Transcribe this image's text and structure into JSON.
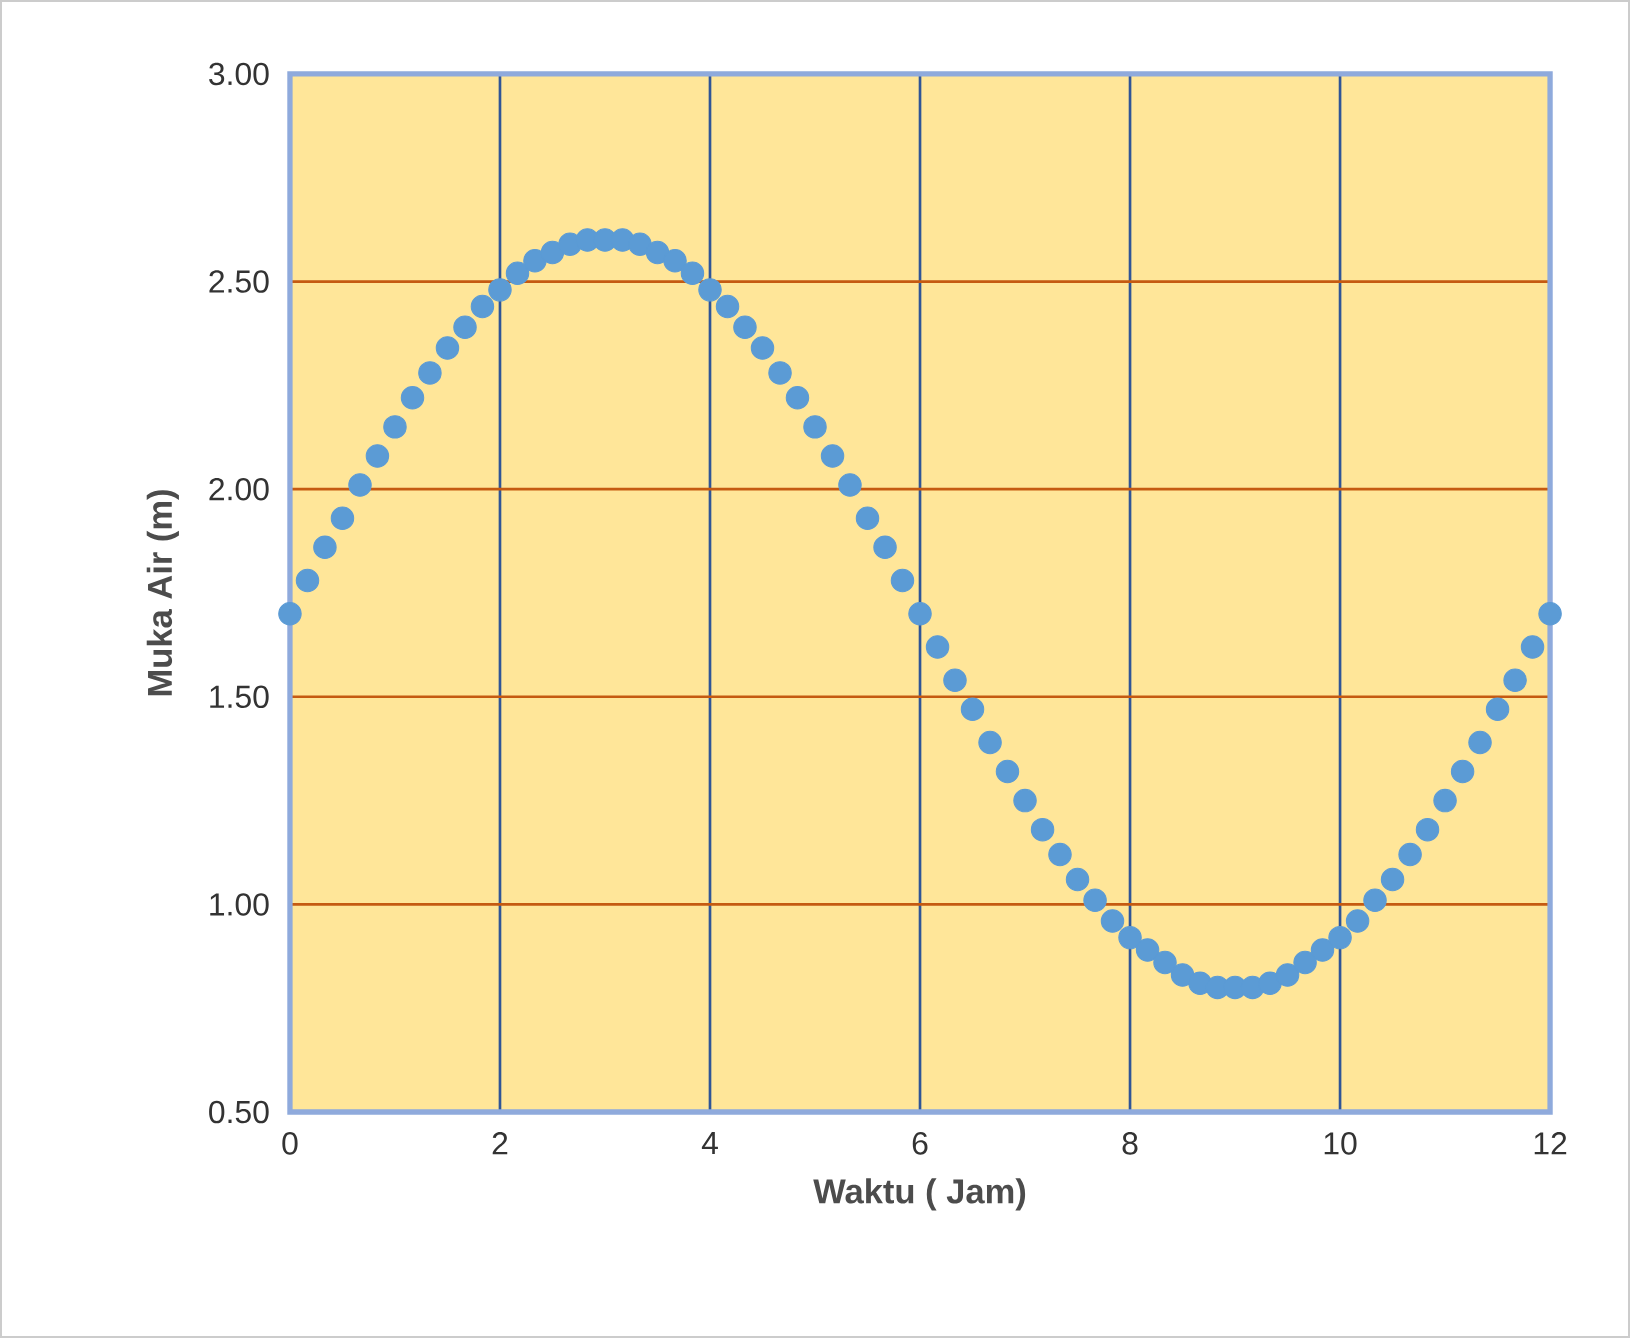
{
  "chart_data": {
    "type": "scatter",
    "xlabel": "Waktu ( Jam)",
    "ylabel": "Muka Air (m)",
    "x": [
      0,
      0.167,
      0.333,
      0.5,
      0.667,
      0.833,
      1,
      1.167,
      1.333,
      1.5,
      1.667,
      1.833,
      2,
      2.167,
      2.333,
      2.5,
      2.667,
      2.833,
      3,
      3.167,
      3.333,
      3.5,
      3.667,
      3.833,
      4,
      4.167,
      4.333,
      4.5,
      4.667,
      4.833,
      5,
      5.167,
      5.333,
      5.5,
      5.667,
      5.833,
      6,
      6.167,
      6.333,
      6.5,
      6.667,
      6.833,
      7,
      7.167,
      7.333,
      7.5,
      7.667,
      7.833,
      8,
      8.167,
      8.333,
      8.5,
      8.667,
      8.833,
      9,
      9.167,
      9.333,
      9.5,
      9.667,
      9.833,
      10,
      10.167,
      10.333,
      10.5,
      10.667,
      10.833,
      11,
      11.167,
      11.333,
      11.5,
      11.667,
      11.833,
      12
    ],
    "values": [
      1.7,
      1.78,
      1.86,
      1.93,
      2.01,
      2.08,
      2.15,
      2.22,
      2.28,
      2.34,
      2.39,
      2.44,
      2.48,
      2.52,
      2.55,
      2.57,
      2.59,
      2.6,
      2.6,
      2.6,
      2.59,
      2.57,
      2.55,
      2.52,
      2.48,
      2.44,
      2.39,
      2.34,
      2.28,
      2.22,
      2.15,
      2.08,
      2.01,
      1.93,
      1.86,
      1.78,
      1.7,
      1.62,
      1.54,
      1.47,
      1.39,
      1.32,
      1.25,
      1.18,
      1.12,
      1.06,
      1.01,
      0.96,
      0.92,
      0.89,
      0.86,
      0.83,
      0.81,
      0.8,
      0.8,
      0.8,
      0.81,
      0.83,
      0.86,
      0.89,
      0.92,
      0.96,
      1.01,
      1.06,
      1.12,
      1.18,
      1.25,
      1.32,
      1.39,
      1.47,
      1.54,
      1.62,
      1.7
    ],
    "color": "#5b9bd5",
    "marker": "circle",
    "grid": true,
    "xlim": [
      0,
      12
    ],
    "xticks": [
      0,
      2,
      4,
      6,
      8,
      10,
      12
    ],
    "ylim": [
      0.5,
      3
    ],
    "yticks": [
      {
        "value": 0.5,
        "label": "0.50"
      },
      {
        "value": 1,
        "label": "1.00"
      },
      {
        "value": 1.5,
        "label": "1.50"
      },
      {
        "value": 2,
        "label": "2.00"
      },
      {
        "value": 2.5,
        "label": "2.50"
      },
      {
        "value": 3,
        "label": "3.00"
      }
    ]
  }
}
